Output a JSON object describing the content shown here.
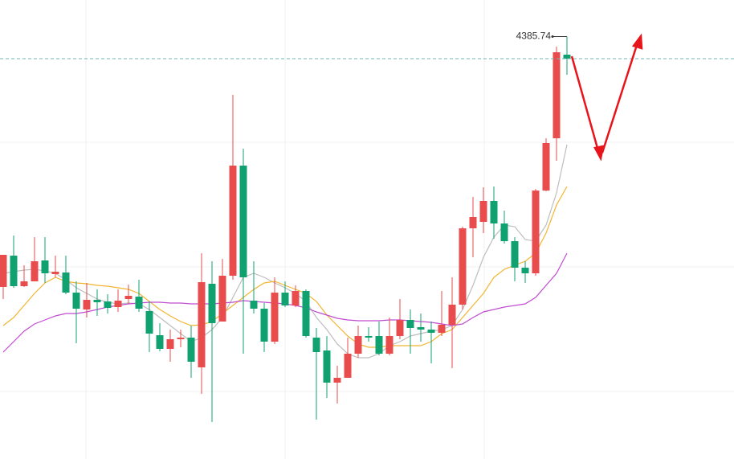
{
  "chart_data": {
    "type": "candlestick",
    "ylim": [
      4123,
      4408.5
    ],
    "yticks": [
      4165,
      4242.5,
      4320
    ],
    "grid": true,
    "up_color": "#e84c4c",
    "down_color": "#10a170",
    "categories": [
      null,
      null,
      null,
      null,
      null,
      null,
      null,
      null,
      null,
      null,
      null,
      null,
      null,
      null,
      null,
      null,
      null,
      null,
      null,
      null,
      null,
      null,
      null,
      null,
      null,
      null,
      null,
      null,
      null,
      null,
      null,
      null,
      null,
      null,
      null,
      null,
      null,
      null,
      null,
      null,
      null,
      null,
      null,
      null,
      null,
      null,
      null,
      null,
      null,
      null,
      null,
      null,
      null,
      null,
      null
    ],
    "open": [
      4230,
      4249.5,
      4230.5,
      4233.5,
      4246.5,
      4238,
      4239,
      4226.5,
      4216,
      4222,
      4221,
      4217.5,
      4222.5,
      4224,
      4215,
      4200,
      4191.5,
      4197.5,
      4198.5,
      4180,
      4232,
      4208.5,
      4237,
      4305.5,
      4221.5,
      4216.5,
      4196,
      4226.5,
      4218.5,
      4227.5,
      4198.5,
      4190.5,
      4170.5,
      4173.5,
      4188.5,
      4199.5,
      4199.5,
      4188.5,
      4199.5,
      4209.5,
      4205,
      4203.5,
      4201.5,
      4206.5,
      4219,
      4266.5,
      4270.5,
      4283.5,
      4269.5,
      4258.5,
      4242,
      4238.5,
      4290,
      4322.5,
      4374.5
    ],
    "high": [
      4250,
      4262,
      4243.5,
      4261,
      4261,
      4249.5,
      4249.5,
      4233.5,
      4232.5,
      4228.5,
      4225.5,
      4228.5,
      4231.5,
      4234.5,
      4221,
      4207.5,
      4203.5,
      4203.5,
      4206,
      4251,
      4246,
      4247.5,
      4349.5,
      4316,
      4246,
      4220,
      4236,
      4233.5,
      4231,
      4228.5,
      4204.5,
      4199.5,
      4181,
      4198.5,
      4206,
      4205,
      4208.5,
      4211,
      4222.5,
      4216,
      4213.5,
      4208.5,
      4227.5,
      4236,
      4267.5,
      4286,
      4292,
      4292.5,
      4277.5,
      4261,
      4246,
      4291,
      4322.5,
      4379.5,
      4385.74
    ],
    "low": [
      4222.5,
      4229.5,
      4230,
      4233.5,
      4232.5,
      4236,
      4225.5,
      4195,
      4211,
      4212,
      4213.5,
      4214.5,
      4219.5,
      4214.5,
      4189.5,
      4190,
      4183.5,
      4192.5,
      4173.5,
      4163.5,
      4146,
      4208.5,
      4234.5,
      4188.5,
      4213.5,
      4189.5,
      4194.5,
      4217.5,
      4217.5,
      4198.5,
      4147.5,
      4161,
      4157.5,
      4173.5,
      4186,
      4196,
      4187.5,
      4187.5,
      4197.5,
      4188.5,
      4196,
      4182.5,
      4199.5,
      4179.5,
      4216,
      4248.5,
      4263.5,
      4260,
      4257,
      4233.5,
      4232.5,
      4237,
      4289.5,
      4308.5,
      4362
    ],
    "close": [
      4250,
      4230.5,
      4233.5,
      4246,
      4238.5,
      4239.5,
      4226.5,
      4216.5,
      4222,
      4220.5,
      4217,
      4221.5,
      4224.5,
      4216.5,
      4201,
      4191.5,
      4197.5,
      4198.5,
      4183.5,
      4233,
      4207.5,
      4237,
      4305.5,
      4236,
      4216.5,
      4196,
      4226.5,
      4218.5,
      4227.5,
      4199.5,
      4189.5,
      4170.5,
      4173.5,
      4188.5,
      4199.5,
      4198.5,
      4188.5,
      4199.5,
      4209.5,
      4204.5,
      4203.5,
      4201.5,
      4206.5,
      4219,
      4266.5,
      4273.5,
      4283.5,
      4269.5,
      4258.5,
      4242,
      4238.5,
      4290,
      4319.5,
      4376,
      4372
    ],
    "lines": [
      {
        "color": "#bdbdbd",
        "values": [
          4238.5,
          4239.5,
          4240.5,
          4241,
          4240,
          4238.5,
          4234.5,
          4229.5,
          4226,
          4222.5,
          4220.5,
          4219.5,
          4220,
          4219.5,
          4216,
          4211,
          4206,
          4201,
          4196,
          4198.5,
          4203.5,
          4211,
          4223.5,
          4236,
          4238.5,
          4236,
          4232.5,
          4229.5,
          4226,
          4221,
          4211,
          4203.5,
          4194.5,
          4188.5,
          4186,
          4186,
          4188.5,
          4193.5,
          4196,
          4199.5,
          4201,
          4202.5,
          4203.5,
          4206,
          4216,
          4231,
          4248.5,
          4261,
          4268.5,
          4267.5,
          4259.5,
          4258.5,
          4268.5,
          4288.5,
          4318.5
        ]
      },
      {
        "color": "#f2b531",
        "values": [
          4206,
          4211,
          4218.5,
          4226,
          4232.5,
          4236,
          4233.5,
          4232.5,
          4232,
          4231,
          4230.5,
          4229.5,
          4228.5,
          4226,
          4221,
          4216,
          4212,
          4208.5,
          4206,
          4206.5,
          4208.5,
          4213.5,
          4218.5,
          4223.5,
          4228.5,
          4232.5,
          4233.5,
          4231,
          4228.5,
          4226,
          4221,
          4212.5,
          4206,
          4199.5,
          4194.5,
          4192.5,
          4192.5,
          4193.5,
          4193.5,
          4193.5,
          4193.5,
          4196,
          4201,
          4203.5,
          4211,
          4218.5,
          4226,
          4236,
          4241,
          4243.5,
          4246,
          4251,
          4263.5,
          4281,
          4292.5
        ]
      },
      {
        "color": "#c04ccf",
        "values": [
          4189.5,
          4196,
          4202.5,
          4207,
          4209.5,
          4212,
          4213.5,
          4213.5,
          4214.5,
          4216,
          4217.5,
          4218.5,
          4219.5,
          4220,
          4220.5,
          4220.5,
          4220,
          4220,
          4219.5,
          4219.5,
          4219.5,
          4220,
          4220.5,
          4221.5,
          4221,
          4220.5,
          4220,
          4219.5,
          4218.5,
          4217,
          4214.5,
          4212.5,
          4210.5,
          4209.5,
          4209,
          4209,
          4209,
          4209.5,
          4209.5,
          4209,
          4208.5,
          4208,
          4207,
          4206,
          4207,
          4211,
          4214.5,
          4216,
          4217.5,
          4218.5,
          4219.5,
          4223.5,
          4231,
          4238.5,
          4251
        ]
      }
    ]
  }
}
